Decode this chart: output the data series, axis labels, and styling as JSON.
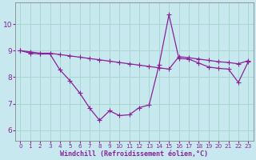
{
  "background_color": "#c8e8f0",
  "grid_color": "#a8d8cc",
  "line_color": "#882299",
  "x_ticks": [
    0,
    1,
    2,
    3,
    4,
    5,
    6,
    7,
    8,
    9,
    10,
    11,
    12,
    13,
    14,
    15,
    16,
    17,
    18,
    19,
    20,
    21,
    22,
    23
  ],
  "y_ticks": [
    6,
    7,
    8,
    9,
    10
  ],
  "ylim": [
    5.6,
    10.8
  ],
  "xlim": [
    -0.5,
    23.5
  ],
  "xlabel": "Windchill (Refroidissement éolien,°C)",
  "line1_x": [
    0,
    1,
    2,
    3,
    4,
    5,
    6,
    7,
    8,
    9,
    10,
    11,
    12,
    13,
    14,
    15,
    16,
    17,
    18,
    19,
    20,
    21,
    22,
    23
  ],
  "line1_y": [
    9.0,
    8.95,
    8.9,
    8.9,
    8.85,
    8.8,
    8.75,
    8.7,
    8.65,
    8.6,
    8.55,
    8.5,
    8.45,
    8.4,
    8.35,
    8.3,
    8.77,
    8.73,
    8.68,
    8.63,
    8.58,
    8.55,
    8.5,
    8.62
  ],
  "line2_x": [
    0,
    1,
    2,
    3,
    4,
    5,
    6,
    7,
    8,
    9,
    10,
    11,
    12,
    13,
    14,
    15,
    16,
    17,
    18,
    19,
    20,
    21,
    22,
    23
  ],
  "line2_y": [
    9.0,
    8.9,
    8.87,
    8.87,
    8.27,
    7.87,
    7.4,
    6.83,
    6.37,
    6.73,
    6.55,
    6.58,
    6.85,
    6.95,
    8.45,
    10.35,
    8.7,
    8.68,
    8.53,
    8.38,
    8.33,
    8.3,
    7.8,
    8.58
  ],
  "marker": "+",
  "marker_size": 4,
  "linewidth": 0.9
}
